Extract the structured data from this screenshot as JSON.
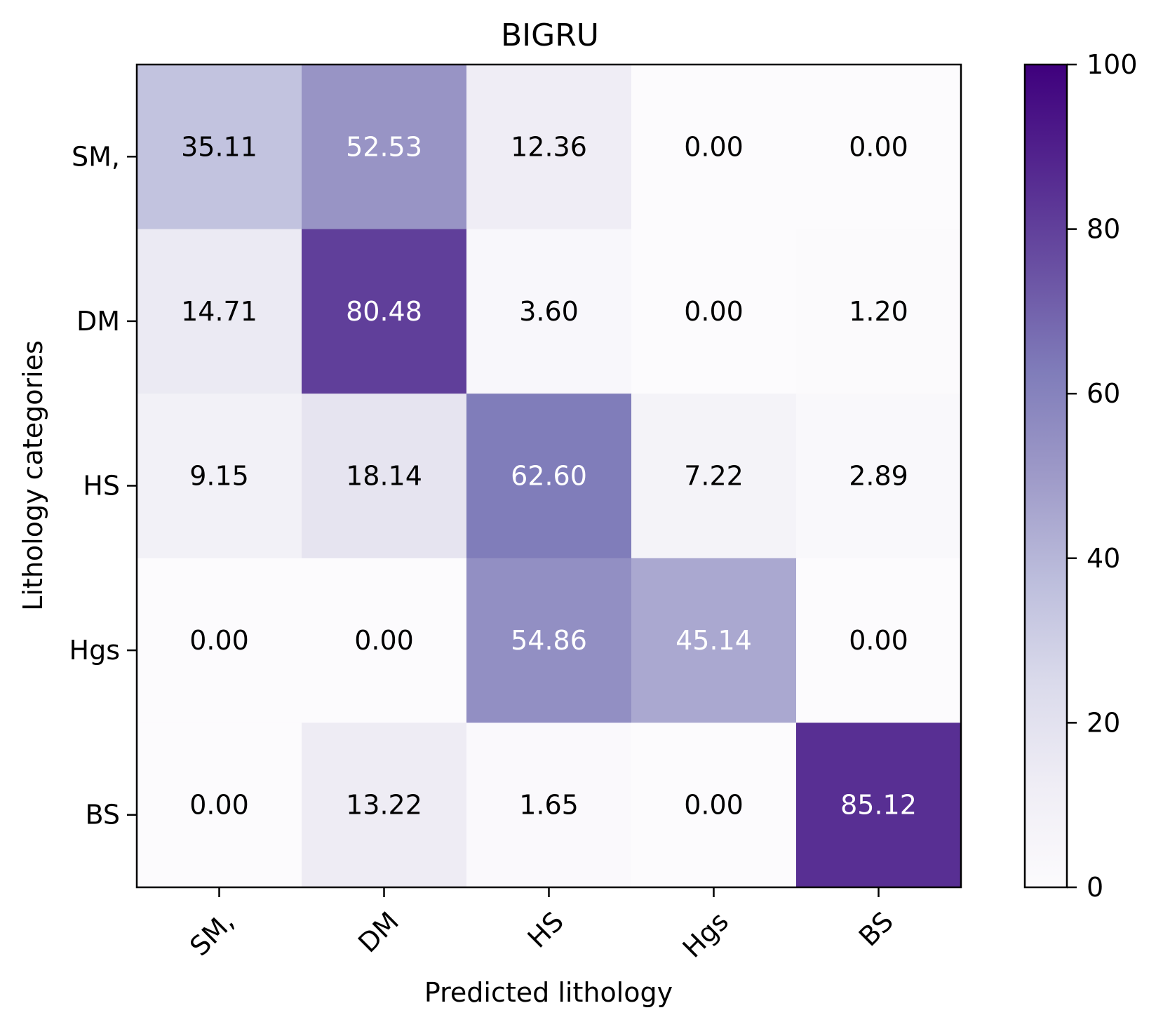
{
  "chart_data": {
    "type": "heatmap",
    "title": "BIGRU",
    "xlabel": "Predicted lithology",
    "ylabel": "Lithology categories",
    "x_categories": [
      "SM,",
      "DM",
      "HS",
      "Hgs",
      "BS"
    ],
    "y_categories": [
      "SM,",
      "DM",
      "HS",
      "Hgs",
      "BS"
    ],
    "values": [
      [
        35.11,
        52.53,
        12.36,
        0.0,
        0.0
      ],
      [
        14.71,
        80.48,
        3.6,
        0.0,
        1.2
      ],
      [
        9.15,
        18.14,
        62.6,
        7.22,
        2.89
      ],
      [
        0.0,
        0.0,
        54.86,
        45.14,
        0.0
      ],
      [
        0.0,
        13.22,
        1.65,
        0.0,
        85.12
      ]
    ],
    "value_format": "2 decimals",
    "colormap": "Purples",
    "colors": [
      "#fcfbfd",
      "#efedf5",
      "#dadaeb",
      "#bcbddc",
      "#9e9ac8",
      "#807dba",
      "#6a51a3",
      "#54278f",
      "#3f007d"
    ],
    "text_color_dark": "#000000",
    "text_color_light": "#ffffff",
    "colorbar": {
      "range": [
        0,
        100
      ],
      "ticks": [
        0,
        20,
        40,
        60,
        80,
        100
      ]
    },
    "grid": false,
    "legend": "colorbar-right"
  }
}
